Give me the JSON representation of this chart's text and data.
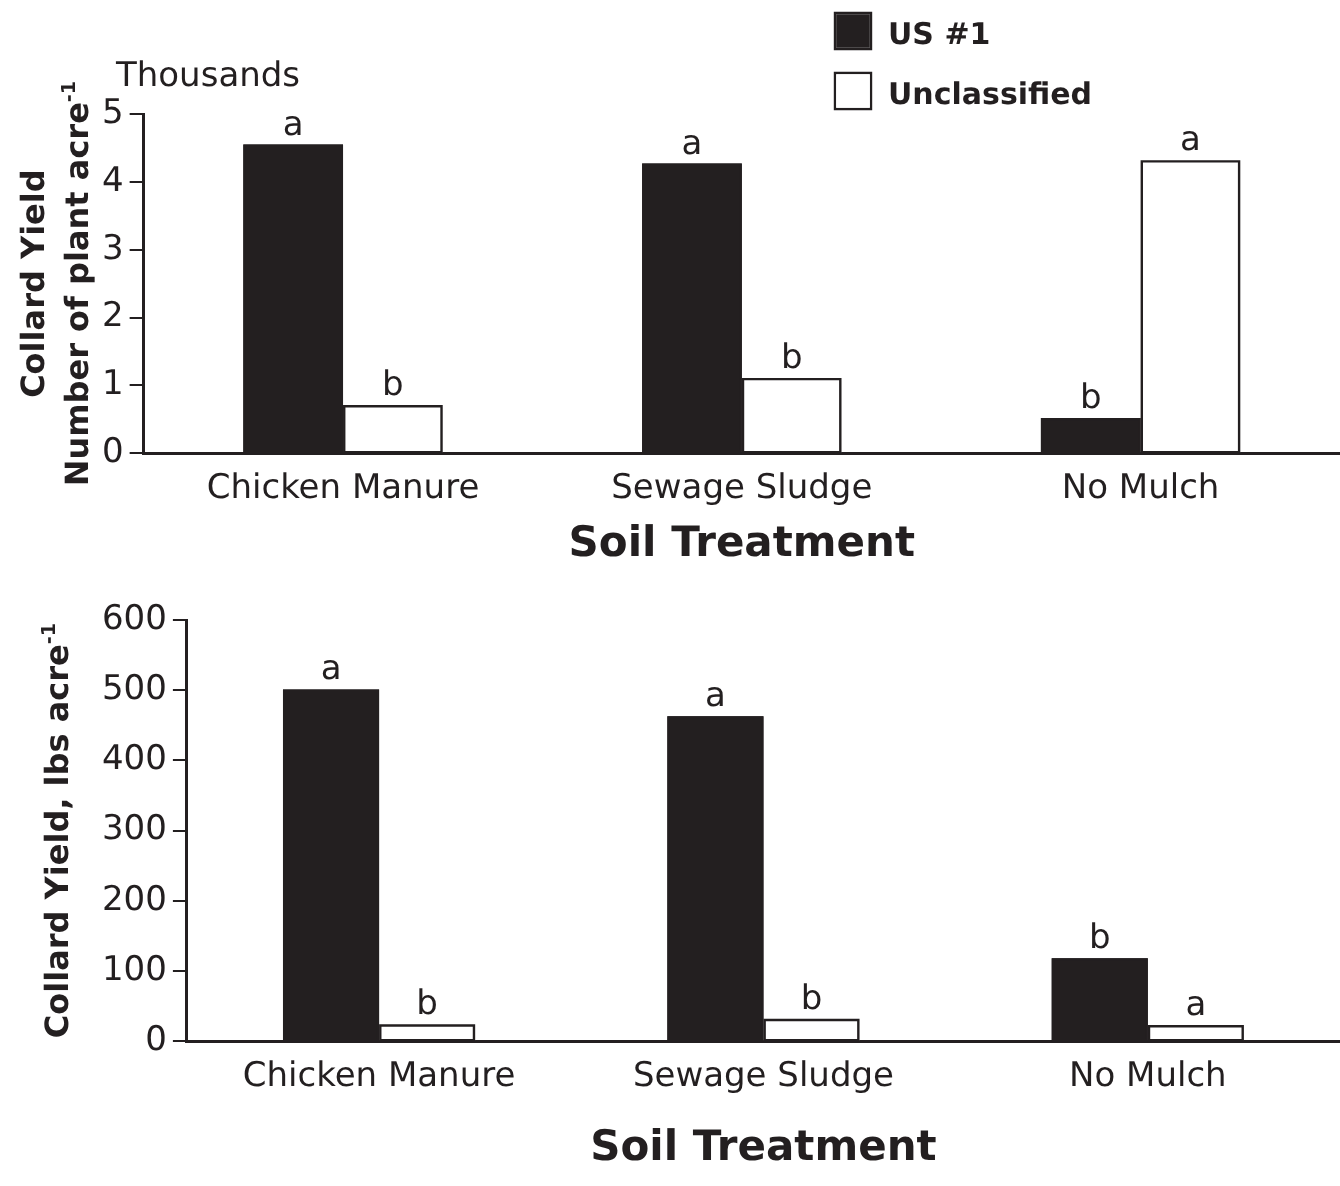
{
  "chart_data": [
    {
      "type": "bar",
      "ylabel": "Collard Yield\nNumber of plant acre$^{-1}$",
      "xlabel": "Soil Treatment",
      "annotations": [
        "Thousands"
      ],
      "categories": [
        "Chicken Manure",
        "Sewage Sludge",
        "No Mulch"
      ],
      "series": [
        {
          "name": "US #1",
          "color": "#231f20",
          "values": [
            4.55,
            4.27,
            0.52
          ],
          "value_labels": [
            "a",
            "a",
            "b"
          ]
        },
        {
          "name": "Unclassified",
          "color": "#ffffff",
          "values": [
            0.71,
            1.11,
            4.32
          ],
          "value_labels": [
            "b",
            "b",
            "a"
          ]
        }
      ],
      "ylim": [
        0,
        5
      ],
      "yticks": [
        0,
        1,
        2,
        3,
        4,
        5
      ],
      "grid": false,
      "legend": "top right"
    },
    {
      "type": "bar",
      "ylabel": "Collard Yield, lbs acre$^{-1}$",
      "xlabel": "Soil Treatment",
      "categories": [
        "Chicken Manure",
        "Sewage Sludge",
        "No Mulch"
      ],
      "series": [
        {
          "color": "#231f20",
          "values": [
            501,
            463,
            118
          ],
          "value_labels": [
            "a",
            "a",
            "b"
          ]
        },
        {
          "color": "#ffffff",
          "values": [
            24,
            32,
            23
          ],
          "value_labels": [
            "b",
            "b",
            "a"
          ]
        }
      ],
      "ylim": [
        0,
        600
      ],
      "yticks": [
        0,
        100,
        200,
        300,
        400,
        500,
        600
      ],
      "grid": false
    }
  ]
}
